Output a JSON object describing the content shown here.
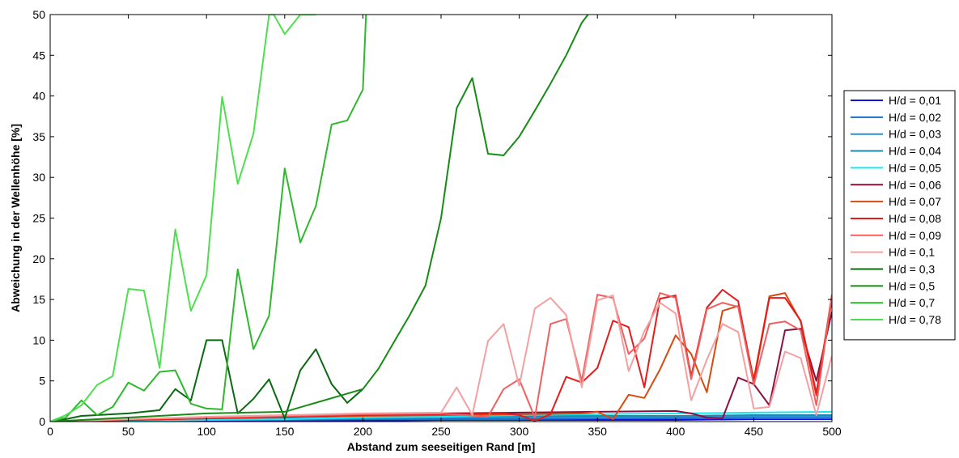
{
  "chart_data": {
    "type": "line",
    "title": "",
    "xlabel": "Abstand zum seeseitigen Rand [m]",
    "ylabel": "Abweichung in der Wellenhöhe [%]",
    "xlim": [
      0,
      500
    ],
    "ylim": [
      0,
      50
    ],
    "xticks": [
      0,
      50,
      100,
      150,
      200,
      250,
      300,
      350,
      400,
      450,
      500
    ],
    "yticks": [
      0,
      5,
      10,
      15,
      20,
      25,
      30,
      35,
      40,
      45,
      50
    ],
    "grid": false,
    "legend_position": "right",
    "series": [
      {
        "name": "H/d = 0,01",
        "color": "#1010e0",
        "x": [
          0,
          50,
          100,
          150,
          200,
          250,
          300,
          350,
          400,
          450,
          500
        ],
        "y": [
          0,
          0.1,
          0.1,
          0.1,
          0.1,
          0.2,
          0.2,
          0.2,
          0.2,
          0.3,
          0.3
        ]
      },
      {
        "name": "H/d = 0,02",
        "color": "#1a6fc0",
        "x": [
          0,
          50,
          100,
          150,
          200,
          250,
          300,
          350,
          400,
          450,
          500
        ],
        "y": [
          0,
          0.1,
          0.2,
          0.2,
          0.3,
          0.3,
          0.3,
          0.4,
          0.4,
          0.4,
          0.4
        ]
      },
      {
        "name": "H/d = 0,03",
        "color": "#2a8fd8",
        "x": [
          0,
          50,
          100,
          150,
          200,
          250,
          300,
          350,
          400,
          450,
          500
        ],
        "y": [
          0,
          0.1,
          0.2,
          0.3,
          0.4,
          0.5,
          0.5,
          0.5,
          0.6,
          0.6,
          0.6
        ]
      },
      {
        "name": "H/d = 0,04",
        "color": "#1f8ab0",
        "x": [
          0,
          50,
          100,
          150,
          200,
          250,
          300,
          350,
          400,
          450,
          500
        ],
        "y": [
          0,
          0.1,
          0.3,
          0.4,
          0.5,
          0.6,
          0.7,
          0.7,
          0.7,
          0.8,
          0.8
        ]
      },
      {
        "name": "H/d = 0,05",
        "color": "#19e6ef",
        "x": [
          0,
          50,
          100,
          150,
          200,
          250,
          300,
          350,
          400,
          450,
          500
        ],
        "y": [
          0,
          0.1,
          0.2,
          0.3,
          0.5,
          0.6,
          0.8,
          0.9,
          1.0,
          1.1,
          1.2
        ]
      },
      {
        "name": "H/d = 0,06",
        "color": "#8a1040",
        "x": [
          0,
          50,
          100,
          150,
          200,
          250,
          300,
          350,
          400,
          410,
          420,
          430,
          440,
          450,
          460,
          470,
          480,
          490,
          500
        ],
        "y": [
          0,
          0.2,
          0.4,
          0.6,
          0.8,
          1.0,
          1.1,
          1.2,
          1.3,
          1.0,
          0.5,
          0.4,
          5.4,
          4.6,
          2.0,
          11.2,
          11.4,
          5.0,
          13.5
        ]
      },
      {
        "name": "H/d = 0,07",
        "color": "#d84a10",
        "x": [
          0,
          50,
          100,
          150,
          200,
          250,
          300,
          340,
          350,
          360,
          370,
          380,
          390,
          400,
          410,
          420,
          430,
          440,
          450,
          460,
          470,
          480,
          490,
          500
        ],
        "y": [
          0,
          0.2,
          0.4,
          0.6,
          0.7,
          0.8,
          0.9,
          1.0,
          1.2,
          0.3,
          3.3,
          2.9,
          6.4,
          10.6,
          8.3,
          3.6,
          13.6,
          14.2,
          5.2,
          15.4,
          15.8,
          12.3,
          3.2,
          15.6
        ]
      },
      {
        "name": "H/d = 0,08",
        "color": "#e81a1a",
        "x": [
          0,
          50,
          100,
          150,
          200,
          250,
          290,
          300,
          310,
          320,
          330,
          340,
          350,
          360,
          370,
          380,
          390,
          400,
          410,
          420,
          430,
          440,
          450,
          460,
          470,
          480,
          490,
          500
        ],
        "y": [
          0,
          0.2,
          0.4,
          0.6,
          0.8,
          0.9,
          1.0,
          0.8,
          0.1,
          0.9,
          5.5,
          4.8,
          6.6,
          12.4,
          11.6,
          4.2,
          15.1,
          15.5,
          5.6,
          14.0,
          16.2,
          14.8,
          4.9,
          15.2,
          15.2,
          12.4,
          3.5,
          15.0
        ]
      },
      {
        "name": "H/d = 0,09",
        "color": "#f06060",
        "x": [
          0,
          50,
          100,
          150,
          200,
          250,
          280,
          290,
          300,
          310,
          320,
          330,
          340,
          350,
          360,
          370,
          380,
          390,
          400,
          410,
          420,
          430,
          440,
          450,
          460,
          470,
          480,
          490,
          500
        ],
        "y": [
          0,
          0.3,
          0.5,
          0.7,
          0.9,
          1.0,
          0.6,
          4.0,
          5.2,
          0.5,
          12.0,
          12.6,
          5.0,
          15.6,
          15.2,
          8.3,
          10.2,
          15.8,
          15.2,
          5.2,
          13.8,
          14.6,
          14.1,
          4.5,
          12.0,
          12.3,
          11.2,
          2.0,
          15.6
        ]
      },
      {
        "name": "H/d = 0,1",
        "color": "#f4a0a0",
        "x": [
          0,
          50,
          100,
          150,
          200,
          250,
          260,
          270,
          280,
          290,
          300,
          310,
          320,
          330,
          340,
          350,
          360,
          370,
          380,
          390,
          400,
          410,
          420,
          430,
          440,
          450,
          460,
          470,
          480,
          490,
          500
        ],
        "y": [
          0,
          0.3,
          0.6,
          0.8,
          1.0,
          1.1,
          4.2,
          0.8,
          9.9,
          12.0,
          4.4,
          13.9,
          15.2,
          13.1,
          4.2,
          14.9,
          15.5,
          6.2,
          11.1,
          14.6,
          13.3,
          2.6,
          7.6,
          12.0,
          11.0,
          1.6,
          1.8,
          8.6,
          7.8,
          0.8,
          8.1
        ]
      },
      {
        "name": "H/d = 0,3",
        "color": "#0a6a10",
        "x": [
          0,
          10,
          20,
          30,
          40,
          50,
          60,
          70,
          80,
          90,
          100,
          110,
          120,
          130,
          140,
          150,
          160,
          170,
          180,
          190,
          200
        ],
        "y": [
          0,
          0.3,
          0.7,
          0.8,
          0.9,
          1.0,
          1.2,
          1.4,
          4.0,
          2.6,
          10.0,
          10.0,
          1.0,
          2.8,
          5.2,
          0.4,
          6.3,
          8.9,
          4.6,
          2.3,
          4.0
        ]
      },
      {
        "name": "H/d = 0,5",
        "color": "#168c16",
        "x": [
          0,
          50,
          100,
          150,
          200,
          210,
          220,
          230,
          240,
          250,
          260,
          270,
          280,
          290,
          300,
          310,
          320,
          330,
          340,
          344
        ],
        "y": [
          0,
          0.5,
          1.0,
          1.2,
          4.0,
          6.5,
          9.8,
          13.1,
          16.7,
          25.0,
          38.5,
          42.2,
          32.9,
          32.7,
          35.0,
          38.2,
          41.5,
          45.0,
          49.0,
          50.0
        ]
      },
      {
        "name": "H/d = 0,7",
        "color": "#2eb82e",
        "x": [
          0,
          10,
          20,
          30,
          40,
          50,
          60,
          70,
          80,
          90,
          100,
          110,
          120,
          130,
          140,
          150,
          160,
          170,
          180,
          190,
          200,
          202
        ],
        "y": [
          0,
          0.5,
          2.6,
          0.8,
          1.8,
          4.8,
          3.8,
          6.1,
          6.3,
          2.2,
          1.6,
          1.5,
          18.7,
          8.9,
          13.0,
          31.1,
          22.0,
          26.5,
          36.5,
          37.0,
          40.8,
          50.0
        ]
      },
      {
        "name": "H/d = 0,78",
        "color": "#4de04d",
        "x": [
          0,
          10,
          20,
          30,
          40,
          50,
          60,
          70,
          80,
          90,
          100,
          110,
          120,
          130,
          140,
          143,
          150,
          160,
          170
        ],
        "y": [
          0,
          0.8,
          2.0,
          4.5,
          5.6,
          16.3,
          16.1,
          6.6,
          23.6,
          13.6,
          18.0,
          39.9,
          29.2,
          35.4,
          50.0,
          50.0,
          47.6,
          50.0,
          50.0
        ]
      }
    ]
  }
}
